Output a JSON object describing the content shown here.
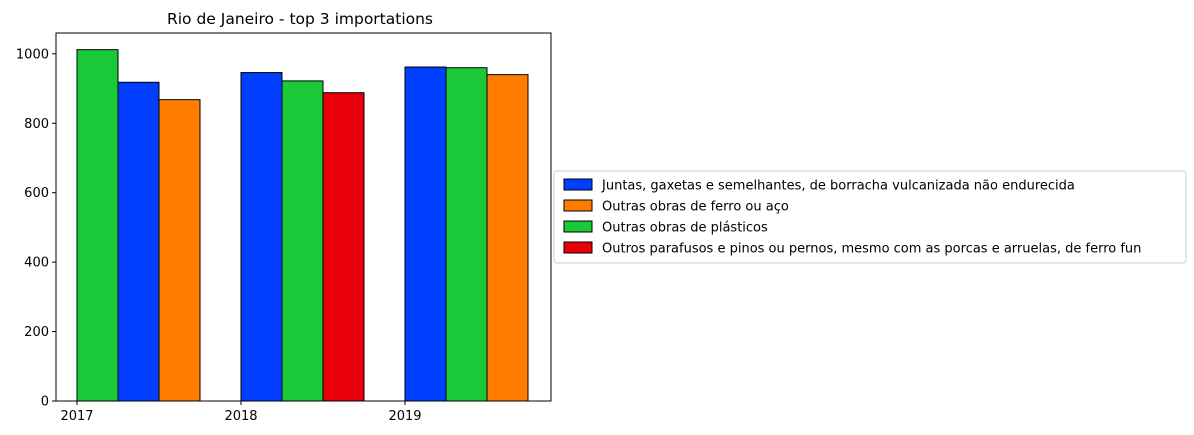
{
  "chart_data": {
    "type": "bar",
    "title": "Rio de Janeiro - top 3 importations",
    "xlabel": "",
    "ylabel": "",
    "ylim": [
      0,
      1060
    ],
    "yticks": [
      0,
      200,
      400,
      600,
      800,
      1000
    ],
    "xticks": [
      "2017",
      "2018",
      "2019"
    ],
    "grid": false,
    "legend_position": "right, outside plot area",
    "series_meta": [
      {
        "name": "Juntas, gaxetas e semelhantes, de borracha vulcanizada não endurecida",
        "color": "#023eff"
      },
      {
        "name": "Outras obras de ferro ou aço",
        "color": "#ff7c00"
      },
      {
        "name": "Outras obras de plásticos",
        "color": "#1ac938"
      },
      {
        "name": "Outros parafusos e pinos ou pernos, mesmo com as porcas e arruelas, de ferro fun",
        "color": "#e8000b"
      }
    ],
    "groups": [
      {
        "year": "2017",
        "bars": [
          {
            "series": "Outras obras de plásticos",
            "value": 1012
          },
          {
            "series": "Juntas, gaxetas e semelhantes, de borracha vulcanizada não endurecida",
            "value": 918
          },
          {
            "series": "Outras obras de ferro ou aço",
            "value": 868
          }
        ]
      },
      {
        "year": "2018",
        "bars": [
          {
            "series": "Juntas, gaxetas e semelhantes, de borracha vulcanizada não endurecida",
            "value": 946
          },
          {
            "series": "Outras obras de plásticos",
            "value": 922
          },
          {
            "series": "Outros parafusos e pinos ou pernos, mesmo com as porcas e arruelas, de ferro fun",
            "value": 888
          }
        ]
      },
      {
        "year": "2019",
        "bars": [
          {
            "series": "Juntas, gaxetas e semelhantes, de borracha vulcanizada não endurecida",
            "value": 962
          },
          {
            "series": "Outras obras de plásticos",
            "value": 960
          },
          {
            "series": "Outras obras de ferro ou aço",
            "value": 940
          }
        ]
      }
    ]
  }
}
